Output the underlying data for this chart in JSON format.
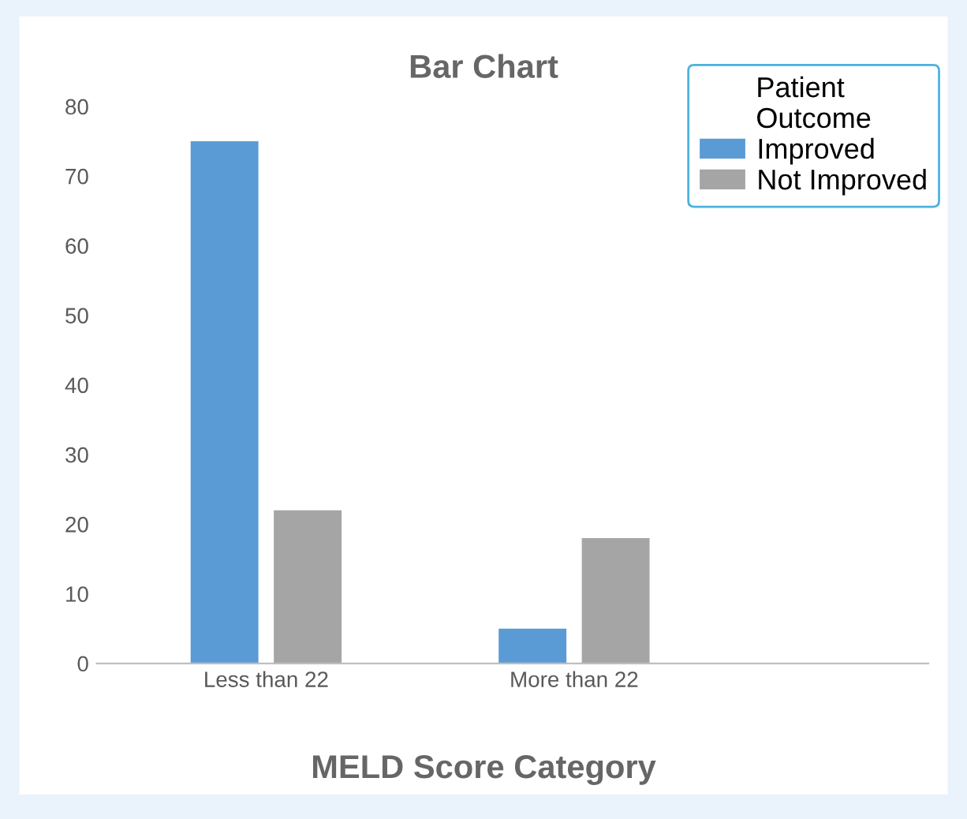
{
  "chart_data": {
    "type": "bar",
    "title": "Bar Chart",
    "xlabel": "MELD Score Category",
    "legend_title": "Patient Outcome",
    "categories": [
      "Less than 22",
      "More than 22"
    ],
    "series": [
      {
        "name": "Improved",
        "color": "#5b9bd5",
        "values": [
          75,
          5
        ]
      },
      {
        "name": "Not Improved",
        "color": "#a5a5a5",
        "values": [
          22,
          18
        ]
      }
    ],
    "ylim": [
      0,
      80
    ],
    "yticks": [
      0,
      10,
      20,
      30,
      40,
      50,
      60,
      70,
      80
    ],
    "grid": false,
    "legend": "top right"
  }
}
